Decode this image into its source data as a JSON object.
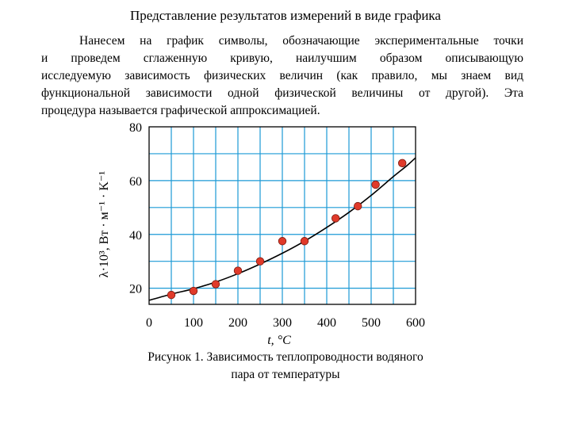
{
  "page": {
    "title": "Представление результатов измерений в виде графика",
    "paragraph_lines": [
      "Нанесем на график символы, обозначающие экспериментальные точки",
      "и проведем сглаженную кривую, наилучшим образом описывающую",
      "исследуемую зависимость физических величин (как правило, мы знаем вид",
      "функциональной зависимости одной физической величины от другой). Эта",
      "процедура называется графической аппроксимацией."
    ],
    "caption_lines": [
      "Рисунок 1. Зависимость теплопроводности водяного",
      "пара от температуры"
    ]
  },
  "chart_data": {
    "type": "scatter",
    "xlabel": "t, °C",
    "ylabel": "λ·10³, Вт · м⁻¹ · K⁻¹",
    "xlim": [
      0,
      600
    ],
    "ylim": [
      14,
      80
    ],
    "x_ticks": [
      "0",
      "100",
      "200",
      "300",
      "400",
      "500",
      "600"
    ],
    "y_ticks": [
      {
        "value": 80,
        "label": "80"
      },
      {
        "value": 60,
        "label": "60"
      },
      {
        "value": 40,
        "label": "40"
      },
      {
        "value": 20,
        "label": "20"
      }
    ],
    "grid": true,
    "points": [
      {
        "x": 50,
        "y": 17.5
      },
      {
        "x": 100,
        "y": 19
      },
      {
        "x": 150,
        "y": 21.5
      },
      {
        "x": 200,
        "y": 26.5
      },
      {
        "x": 250,
        "y": 30
      },
      {
        "x": 300,
        "y": 37.5
      },
      {
        "x": 350,
        "y": 37.5
      },
      {
        "x": 420,
        "y": 46
      },
      {
        "x": 470,
        "y": 50.5
      },
      {
        "x": 510,
        "y": 58.5
      },
      {
        "x": 570,
        "y": 66.5
      }
    ],
    "fit_curve": [
      {
        "x": 0,
        "y": 15.5
      },
      {
        "x": 50,
        "y": 17.8
      },
      {
        "x": 100,
        "y": 19.8
      },
      {
        "x": 150,
        "y": 22.3
      },
      {
        "x": 200,
        "y": 25.4
      },
      {
        "x": 250,
        "y": 29.0
      },
      {
        "x": 300,
        "y": 33.0
      },
      {
        "x": 350,
        "y": 37.5
      },
      {
        "x": 400,
        "y": 42.6
      },
      {
        "x": 450,
        "y": 48.2
      },
      {
        "x": 500,
        "y": 54.5
      },
      {
        "x": 550,
        "y": 61.5
      },
      {
        "x": 580,
        "y": 65.5
      },
      {
        "x": 600,
        "y": 68.5
      }
    ],
    "point_color": "#e03a2a",
    "point_stroke": "#7a1a10",
    "grid_color": "#1c9ad6",
    "curve_color": "#000000"
  }
}
